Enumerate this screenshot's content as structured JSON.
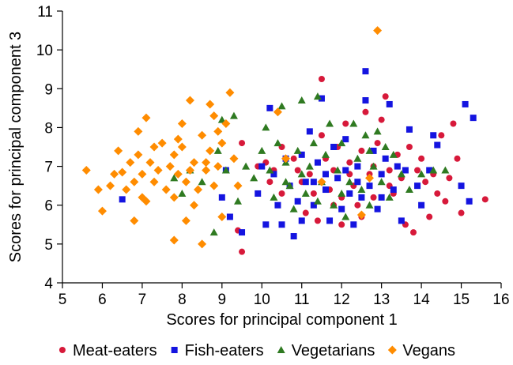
{
  "chart_data": {
    "type": "scatter",
    "title": "",
    "xlabel": "Scores for principal component 1",
    "ylabel": "Scores for principal component 3",
    "xlim": [
      5,
      16
    ],
    "ylim": [
      4,
      11
    ],
    "xticks": [
      "5",
      "6",
      "7",
      "8",
      "9",
      "10",
      "11",
      "12",
      "13",
      "14",
      "15",
      "16"
    ],
    "yticks": [
      "4",
      "5",
      "6",
      "7",
      "8",
      "9",
      "10",
      "11"
    ],
    "grid": false,
    "legend_position": "bottom",
    "series": [
      {
        "name": "Meat-eaters",
        "color": "#d7193a",
        "marker": "circle",
        "points": [
          [
            9.4,
            5.35
          ],
          [
            9.5,
            4.8
          ],
          [
            9.5,
            7.6
          ],
          [
            9.9,
            7.0
          ],
          [
            10.1,
            7.1
          ],
          [
            10.2,
            6.6
          ],
          [
            10.3,
            6.9
          ],
          [
            10.5,
            7.5
          ],
          [
            10.5,
            6.3
          ],
          [
            10.8,
            7.2
          ],
          [
            10.9,
            6.9
          ],
          [
            11.0,
            6.6
          ],
          [
            11.1,
            5.8
          ],
          [
            11.2,
            6.8
          ],
          [
            11.3,
            6.3
          ],
          [
            11.4,
            5.6
          ],
          [
            11.5,
            9.25
          ],
          [
            11.5,
            7.8
          ],
          [
            11.6,
            7.2
          ],
          [
            11.7,
            6.4
          ],
          [
            11.8,
            6.9
          ],
          [
            11.9,
            7.5
          ],
          [
            12.0,
            5.5
          ],
          [
            12.0,
            6.2
          ],
          [
            12.1,
            8.1
          ],
          [
            12.2,
            7.1
          ],
          [
            12.3,
            6.5
          ],
          [
            12.4,
            6.0
          ],
          [
            12.5,
            7.4
          ],
          [
            12.5,
            5.7
          ],
          [
            12.6,
            8.4
          ],
          [
            12.7,
            6.8
          ],
          [
            12.8,
            6.2
          ],
          [
            12.9,
            7.6
          ],
          [
            13.0,
            8.2
          ],
          [
            13.1,
            8.8
          ],
          [
            13.2,
            6.9
          ],
          [
            13.3,
            6.3
          ],
          [
            13.4,
            7.3
          ],
          [
            13.5,
            6.7
          ],
          [
            13.6,
            5.5
          ],
          [
            13.7,
            7.5
          ],
          [
            13.8,
            5.3
          ],
          [
            13.9,
            6.9
          ],
          [
            14.0,
            7.2
          ],
          [
            14.1,
            6.6
          ],
          [
            14.2,
            5.7
          ],
          [
            14.3,
            6.8
          ],
          [
            14.4,
            6.3
          ],
          [
            14.5,
            7.8
          ],
          [
            14.6,
            6.1
          ],
          [
            14.7,
            6.7
          ],
          [
            14.8,
            8.1
          ],
          [
            14.9,
            7.2
          ],
          [
            15.0,
            5.8
          ],
          [
            15.6,
            6.15
          ],
          [
            12.2,
            6.8
          ],
          [
            12.8,
            7.0
          ],
          [
            11.8,
            6.0
          ],
          [
            13.2,
            6.5
          ]
        ]
      },
      {
        "name": "Fish-eaters",
        "color": "#1414e0",
        "marker": "square",
        "points": [
          [
            6.5,
            6.15
          ],
          [
            9.0,
            6.2
          ],
          [
            9.1,
            6.9
          ],
          [
            9.2,
            5.7
          ],
          [
            9.5,
            5.3
          ],
          [
            9.9,
            6.3
          ],
          [
            10.0,
            7.0
          ],
          [
            10.1,
            5.5
          ],
          [
            10.2,
            8.5
          ],
          [
            10.3,
            6.8
          ],
          [
            10.4,
            6.0
          ],
          [
            10.5,
            5.5
          ],
          [
            10.6,
            7.2
          ],
          [
            10.7,
            6.5
          ],
          [
            10.8,
            5.2
          ],
          [
            10.9,
            6.1
          ],
          [
            11.0,
            7.3
          ],
          [
            11.0,
            5.6
          ],
          [
            11.1,
            6.6
          ],
          [
            11.2,
            7.9
          ],
          [
            11.3,
            6.0
          ],
          [
            11.4,
            7.1
          ],
          [
            11.5,
            8.75
          ],
          [
            11.6,
            6.4
          ],
          [
            11.7,
            5.6
          ],
          [
            11.8,
            7.5
          ],
          [
            11.9,
            6.7
          ],
          [
            12.0,
            5.9
          ],
          [
            12.1,
            7.7
          ],
          [
            12.2,
            6.3
          ],
          [
            12.3,
            5.5
          ],
          [
            12.4,
            7.0
          ],
          [
            12.5,
            6.2
          ],
          [
            12.6,
            8.7
          ],
          [
            12.6,
            9.45
          ],
          [
            12.7,
            6.5
          ],
          [
            12.8,
            7.4
          ],
          [
            12.9,
            5.9
          ],
          [
            13.0,
            6.8
          ],
          [
            13.1,
            7.2
          ],
          [
            13.2,
            8.6
          ],
          [
            13.3,
            6.4
          ],
          [
            13.4,
            7.0
          ],
          [
            13.5,
            5.6
          ],
          [
            13.6,
            6.9
          ],
          [
            13.7,
            7.95
          ],
          [
            13.9,
            6.5
          ],
          [
            14.0,
            6.0
          ],
          [
            14.2,
            6.9
          ],
          [
            14.3,
            7.8
          ],
          [
            14.4,
            7.55
          ],
          [
            15.0,
            6.5
          ],
          [
            15.1,
            8.6
          ],
          [
            15.2,
            6.1
          ],
          [
            15.3,
            8.25
          ],
          [
            12.1,
            6.9
          ],
          [
            11.6,
            6.8
          ],
          [
            12.4,
            6.6
          ],
          [
            13.0,
            6.2
          ],
          [
            11.3,
            6.6
          ]
        ]
      },
      {
        "name": "Vegetarians",
        "color": "#2f7a21",
        "marker": "triangle",
        "points": [
          [
            7.8,
            6.7
          ],
          [
            8.0,
            6.3
          ],
          [
            8.2,
            6.9
          ],
          [
            8.5,
            6.6
          ],
          [
            8.8,
            5.3
          ],
          [
            8.9,
            7.4
          ],
          [
            9.0,
            8.2
          ],
          [
            9.1,
            6.9
          ],
          [
            9.3,
            8.3
          ],
          [
            9.4,
            6.1
          ],
          [
            9.6,
            7.0
          ],
          [
            9.8,
            6.7
          ],
          [
            10.0,
            7.4
          ],
          [
            10.1,
            8.0
          ],
          [
            10.2,
            6.9
          ],
          [
            10.3,
            6.2
          ],
          [
            10.4,
            7.6
          ],
          [
            10.5,
            8.55
          ],
          [
            10.6,
            7.1
          ],
          [
            10.7,
            6.5
          ],
          [
            10.8,
            5.9
          ],
          [
            10.9,
            7.4
          ],
          [
            11.0,
            6.8
          ],
          [
            11.0,
            8.7
          ],
          [
            11.1,
            6.3
          ],
          [
            11.2,
            7.0
          ],
          [
            11.3,
            7.6
          ],
          [
            11.4,
            8.8
          ],
          [
            11.5,
            6.6
          ],
          [
            11.6,
            7.3
          ],
          [
            11.7,
            8.1
          ],
          [
            11.8,
            6.0
          ],
          [
            11.9,
            6.9
          ],
          [
            12.0,
            7.6
          ],
          [
            12.1,
            5.7
          ],
          [
            12.2,
            6.6
          ],
          [
            12.3,
            8.1
          ],
          [
            12.4,
            7.2
          ],
          [
            12.5,
            6.4
          ],
          [
            12.6,
            7.8
          ],
          [
            12.7,
            6.0
          ],
          [
            12.8,
            7.0
          ],
          [
            12.9,
            7.9
          ],
          [
            13.0,
            6.6
          ],
          [
            13.1,
            7.5
          ],
          [
            13.2,
            6.2
          ],
          [
            13.3,
            7.3
          ],
          [
            13.5,
            6.8
          ],
          [
            13.7,
            6.4
          ],
          [
            14.0,
            6.8
          ],
          [
            14.3,
            6.9
          ],
          [
            14.6,
            6.9
          ],
          [
            12.0,
            6.3
          ],
          [
            11.4,
            6.1
          ],
          [
            10.6,
            6.6
          ],
          [
            12.7,
            7.4
          ]
        ]
      },
      {
        "name": "Vegans",
        "color": "#ff8c00",
        "marker": "diamond",
        "points": [
          [
            5.6,
            6.9
          ],
          [
            5.9,
            6.4
          ],
          [
            6.0,
            5.85
          ],
          [
            6.2,
            6.5
          ],
          [
            6.3,
            6.8
          ],
          [
            6.4,
            7.4
          ],
          [
            6.5,
            6.85
          ],
          [
            6.6,
            6.4
          ],
          [
            6.7,
            7.1
          ],
          [
            6.8,
            6.6
          ],
          [
            6.9,
            7.9
          ],
          [
            7.0,
            6.8
          ],
          [
            7.0,
            6.2
          ],
          [
            7.1,
            8.25
          ],
          [
            7.2,
            7.1
          ],
          [
            7.3,
            6.6
          ],
          [
            7.3,
            7.5
          ],
          [
            7.4,
            6.9
          ],
          [
            7.5,
            7.6
          ],
          [
            7.6,
            6.4
          ],
          [
            7.7,
            7.0
          ],
          [
            7.8,
            6.2
          ],
          [
            7.8,
            7.3
          ],
          [
            7.9,
            6.8
          ],
          [
            8.0,
            7.5
          ],
          [
            8.0,
            8.1
          ],
          [
            8.1,
            5.6
          ],
          [
            8.2,
            6.9
          ],
          [
            8.2,
            8.7
          ],
          [
            8.3,
            7.1
          ],
          [
            8.4,
            6.4
          ],
          [
            8.5,
            7.8
          ],
          [
            8.5,
            5.0
          ],
          [
            8.6,
            6.9
          ],
          [
            8.7,
            8.6
          ],
          [
            8.7,
            7.4
          ],
          [
            8.8,
            6.5
          ],
          [
            8.8,
            8.3
          ],
          [
            8.9,
            7.9
          ],
          [
            8.9,
            7.0
          ],
          [
            9.0,
            5.7
          ],
          [
            9.0,
            7.6
          ],
          [
            9.2,
            8.9
          ],
          [
            9.3,
            7.2
          ],
          [
            9.4,
            6.5
          ],
          [
            7.8,
            5.1
          ],
          [
            7.1,
            6.1
          ],
          [
            6.8,
            5.6
          ],
          [
            8.3,
            6.0
          ],
          [
            9.1,
            8.1
          ],
          [
            10.4,
            8.4
          ],
          [
            10.6,
            7.2
          ],
          [
            11.5,
            6.6
          ],
          [
            12.9,
            10.5
          ],
          [
            12.7,
            6.7
          ],
          [
            12.5,
            5.75
          ],
          [
            8.6,
            7.1
          ],
          [
            7.9,
            7.7
          ],
          [
            8.1,
            6.6
          ],
          [
            6.9,
            7.3
          ]
        ]
      }
    ]
  }
}
